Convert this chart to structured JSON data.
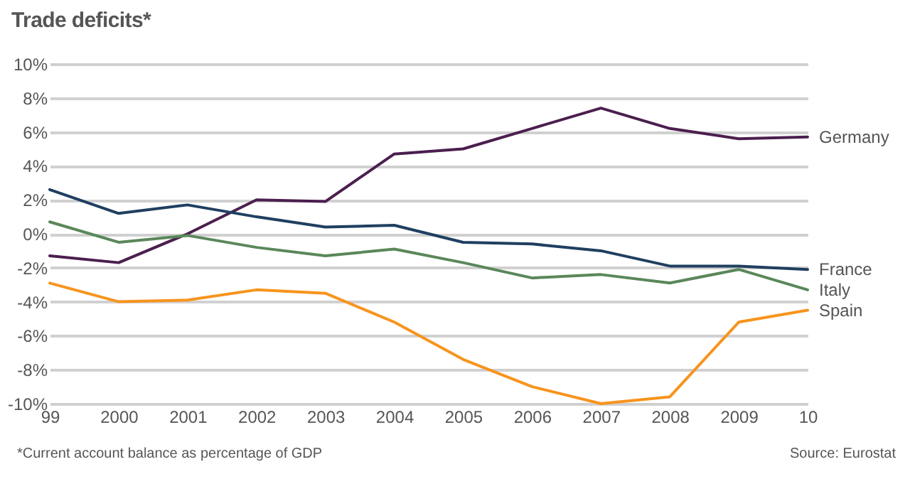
{
  "chart_data": {
    "type": "line",
    "title": "Trade deficits*",
    "categories": [
      "99",
      "2000",
      "2001",
      "2002",
      "2003",
      "2004",
      "2005",
      "2006",
      "2007",
      "2008",
      "2009",
      "10"
    ],
    "series": [
      {
        "name": "Germany",
        "color": "#4b1f4f",
        "values": [
          -1.3,
          -1.7,
          0,
          2.0,
          1.9,
          4.7,
          5.0,
          6.2,
          7.4,
          6.2,
          5.6,
          5.7
        ]
      },
      {
        "name": "France",
        "color": "#1f3f60",
        "values": [
          2.6,
          1.2,
          1.7,
          1.0,
          0.4,
          0.5,
          -0.5,
          -0.6,
          -1.0,
          -1.9,
          -1.9,
          -2.1
        ]
      },
      {
        "name": "Italy",
        "color": "#5a875a",
        "values": [
          0.7,
          -0.5,
          -0.1,
          -0.8,
          -1.3,
          -0.9,
          -1.7,
          -2.6,
          -2.4,
          -2.9,
          -2.1,
          -3.3
        ]
      },
      {
        "name": "Spain",
        "color": "#f7941d",
        "values": [
          -2.9,
          -4.0,
          -3.9,
          -3.3,
          -3.5,
          -5.2,
          -7.4,
          -9.0,
          -10.0,
          -9.6,
          -5.2,
          -4.5
        ]
      }
    ],
    "ylim": [
      -10,
      10
    ],
    "yticks": [
      {
        "value": -10,
        "label": "-10%"
      },
      {
        "value": -8,
        "label": "-8%"
      },
      {
        "value": -6,
        "label": "-6%"
      },
      {
        "value": -4,
        "label": "-4%"
      },
      {
        "value": -2,
        "label": "-2%"
      },
      {
        "value": 0,
        "label": "0%"
      },
      {
        "value": 2,
        "label": "2%"
      },
      {
        "value": 4,
        "label": "4%"
      },
      {
        "value": 6,
        "label": "6%"
      },
      {
        "value": 8,
        "label": "8%"
      },
      {
        "value": 10,
        "label": "10%"
      }
    ],
    "grid": "y",
    "marker": "none",
    "line_style": "solid",
    "annotations": [
      "*Current account balance as percentage of GDP",
      "Source: Eurostat"
    ]
  }
}
